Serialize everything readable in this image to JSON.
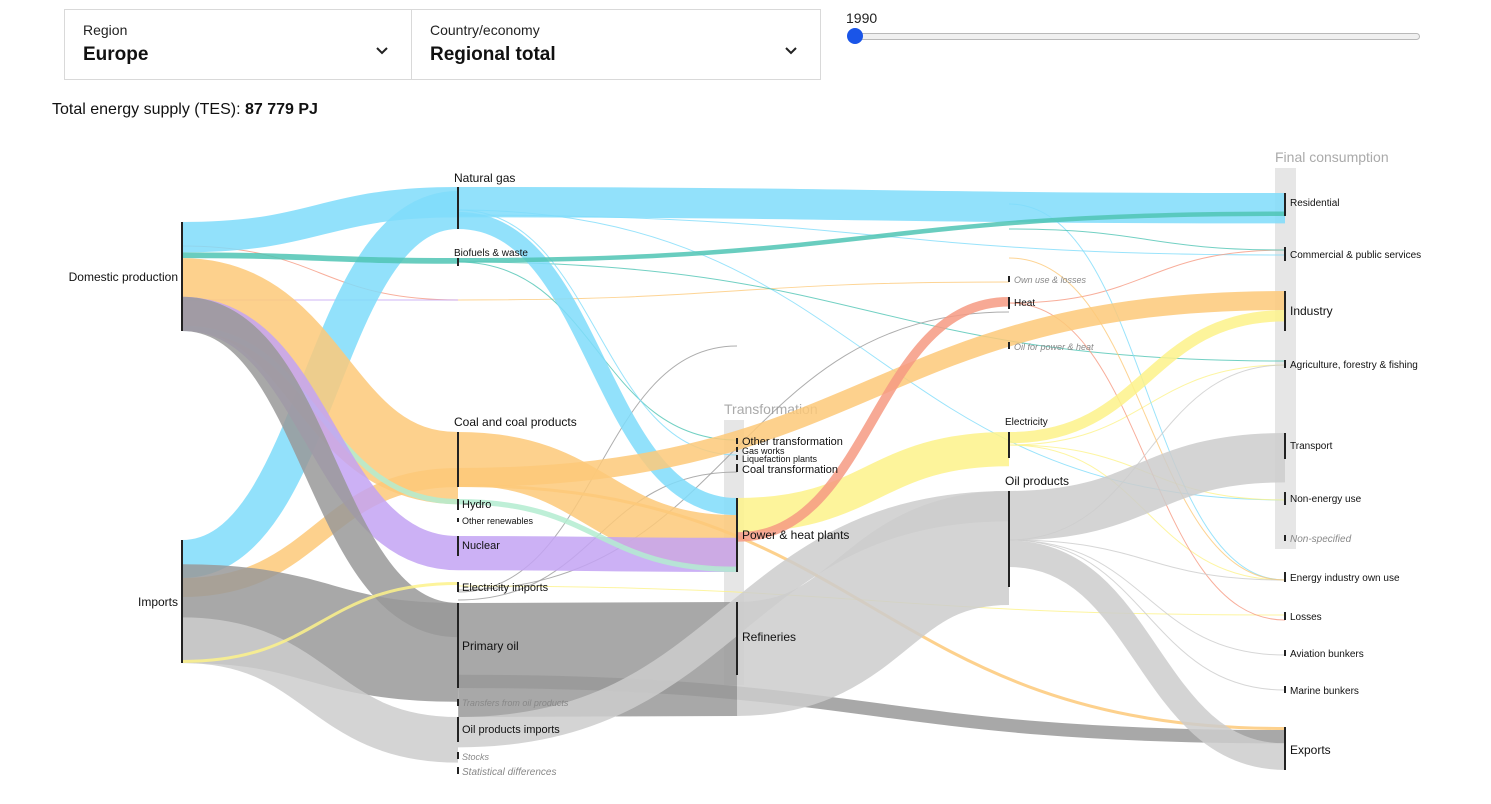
{
  "selectors": {
    "region": {
      "label": "Region",
      "value": "Europe"
    },
    "country": {
      "label": "Country/economy",
      "value": "Regional total"
    }
  },
  "slider": {
    "year": "1990",
    "fraction": 0.0
  },
  "tes": {
    "label": "Total energy supply (TES):",
    "value": "87 779 PJ"
  },
  "colors": {
    "gas": "#7fdcfa",
    "biofuels": "#4fc4b4",
    "coal": "#fdc979",
    "nuclear": "#c3a3f3",
    "hydro": "#b3ecd0",
    "oil": "#999999",
    "oilproducts": "#cccccc",
    "electricity": "#fdf28a",
    "heat": "#f69a82",
    "slider": "#1a55e8"
  },
  "chart_data": {
    "type": "sankey",
    "unit": "PJ",
    "group_labels": {
      "transformation": "Transformation",
      "final": "Final consumption"
    },
    "nodes": [
      {
        "id": "domestic",
        "label": "Domestic production",
        "italic": false
      },
      {
        "id": "imports",
        "label": "Imports",
        "italic": false
      },
      {
        "id": "natgas",
        "label": "Natural gas",
        "italic": false
      },
      {
        "id": "biofuels",
        "label": "Biofuels & waste",
        "italic": false
      },
      {
        "id": "coal",
        "label": "Coal and coal products",
        "italic": false
      },
      {
        "id": "hydro",
        "label": "Hydro",
        "italic": false
      },
      {
        "id": "otherren",
        "label": "Other renewables",
        "italic": false
      },
      {
        "id": "nuclear",
        "label": "Nuclear",
        "italic": false
      },
      {
        "id": "elecimp",
        "label": "Electricity imports",
        "italic": false
      },
      {
        "id": "primoil",
        "label": "Primary oil",
        "italic": false
      },
      {
        "id": "transfers",
        "label": "Transfers from oil products",
        "italic": true
      },
      {
        "id": "oilprodimp",
        "label": "Oil products imports",
        "italic": false
      },
      {
        "id": "stocks",
        "label": "Stocks",
        "italic": true
      },
      {
        "id": "statdiff",
        "label": "Statistical differences",
        "italic": true
      },
      {
        "id": "othertrans",
        "label": "Other transformation",
        "italic": false
      },
      {
        "id": "gasworks",
        "label": "Gas works",
        "italic": false
      },
      {
        "id": "liquef",
        "label": "Liquefaction plants",
        "italic": false
      },
      {
        "id": "coaltrans",
        "label": "Coal transformation",
        "italic": false
      },
      {
        "id": "powerheat",
        "label": "Power & heat plants",
        "italic": false
      },
      {
        "id": "refineries",
        "label": "Refineries",
        "italic": false
      },
      {
        "id": "ownuse",
        "label": "Own use & losses",
        "italic": true
      },
      {
        "id": "heat",
        "label": "Heat",
        "italic": false
      },
      {
        "id": "oilpowerheat",
        "label": "Oil for power & heat",
        "italic": true
      },
      {
        "id": "electricity",
        "label": "Electricity",
        "italic": false
      },
      {
        "id": "oilproducts",
        "label": "Oil products",
        "italic": false
      },
      {
        "id": "residential",
        "label": "Residential",
        "italic": false
      },
      {
        "id": "commercial",
        "label": "Commercial & public services",
        "italic": false
      },
      {
        "id": "industry",
        "label": "Industry",
        "italic": false
      },
      {
        "id": "agriculture",
        "label": "Agriculture, forestry & fishing",
        "italic": false
      },
      {
        "id": "transport",
        "label": "Transport",
        "italic": false
      },
      {
        "id": "nonenergy",
        "label": "Non-energy use",
        "italic": false
      },
      {
        "id": "nonspecified",
        "label": "Non-specified",
        "italic": true
      },
      {
        "id": "energyown",
        "label": "Energy industry own use",
        "italic": false
      },
      {
        "id": "losses",
        "label": "Losses",
        "italic": false
      },
      {
        "id": "aviation",
        "label": "Aviation bunkers",
        "italic": false
      },
      {
        "id": "marine",
        "label": "Marine bunkers",
        "italic": false
      },
      {
        "id": "exports",
        "label": "Exports",
        "italic": false
      }
    ],
    "links": [
      {
        "source": "domestic",
        "target": "natgas",
        "fuel": "gas",
        "value": 8000
      },
      {
        "source": "imports",
        "target": "natgas",
        "fuel": "gas",
        "value": 10000
      },
      {
        "source": "domestic",
        "target": "biofuels",
        "fuel": "biofuels",
        "value": 1500
      },
      {
        "source": "domestic",
        "target": "coal",
        "fuel": "coal",
        "value": 19000
      },
      {
        "source": "imports",
        "target": "coal",
        "fuel": "coal",
        "value": 5000
      },
      {
        "source": "domestic",
        "target": "hydro",
        "fuel": "hydro",
        "value": 1400
      },
      {
        "source": "domestic",
        "target": "nuclear",
        "fuel": "nuclear",
        "value": 9000
      },
      {
        "source": "domestic",
        "target": "primoil",
        "fuel": "oil",
        "value": 9000
      },
      {
        "source": "imports",
        "target": "primoil",
        "fuel": "oil",
        "value": 26000
      },
      {
        "source": "imports",
        "target": "oilprodimp",
        "fuel": "oilproducts",
        "value": 12000
      },
      {
        "source": "imports",
        "target": "elecimp",
        "fuel": "electricity",
        "value": 800
      },
      {
        "source": "natgas",
        "target": "residential",
        "fuel": "gas",
        "value": 8000
      },
      {
        "source": "natgas",
        "target": "powerheat",
        "fuel": "gas",
        "value": 4500
      },
      {
        "source": "biofuels",
        "target": "residential",
        "fuel": "biofuels",
        "value": 1200
      },
      {
        "source": "coal",
        "target": "powerheat",
        "fuel": "coal",
        "value": 14000
      },
      {
        "source": "coal",
        "target": "industry",
        "fuel": "coal",
        "value": 5000
      },
      {
        "source": "coal",
        "target": "exports",
        "fuel": "coal",
        "value": 800
      },
      {
        "source": "nuclear",
        "target": "powerheat",
        "fuel": "nuclear",
        "value": 9000
      },
      {
        "source": "hydro",
        "target": "powerheat",
        "fuel": "hydro",
        "value": 1400
      },
      {
        "source": "primoil",
        "target": "refineries",
        "fuel": "oil",
        "value": 30000
      },
      {
        "source": "primoil",
        "target": "exports",
        "fuel": "oil",
        "value": 3500
      },
      {
        "source": "oilprodimp",
        "target": "oilproducts",
        "fuel": "oilproducts",
        "value": 8000
      },
      {
        "source": "refineries",
        "target": "oilproducts",
        "fuel": "oilproducts",
        "value": 30000
      },
      {
        "source": "powerheat",
        "target": "electricity",
        "fuel": "electricity",
        "value": 9000
      },
      {
        "source": "powerheat",
        "target": "heat",
        "fuel": "heat",
        "value": 2500
      },
      {
        "source": "oilproducts",
        "target": "transport",
        "fuel": "oilproducts",
        "value": 13000
      },
      {
        "source": "oilproducts",
        "target": "exports",
        "fuel": "oilproducts",
        "value": 7000
      },
      {
        "source": "electricity",
        "target": "industry",
        "fuel": "electricity",
        "value": 3000
      }
    ]
  }
}
